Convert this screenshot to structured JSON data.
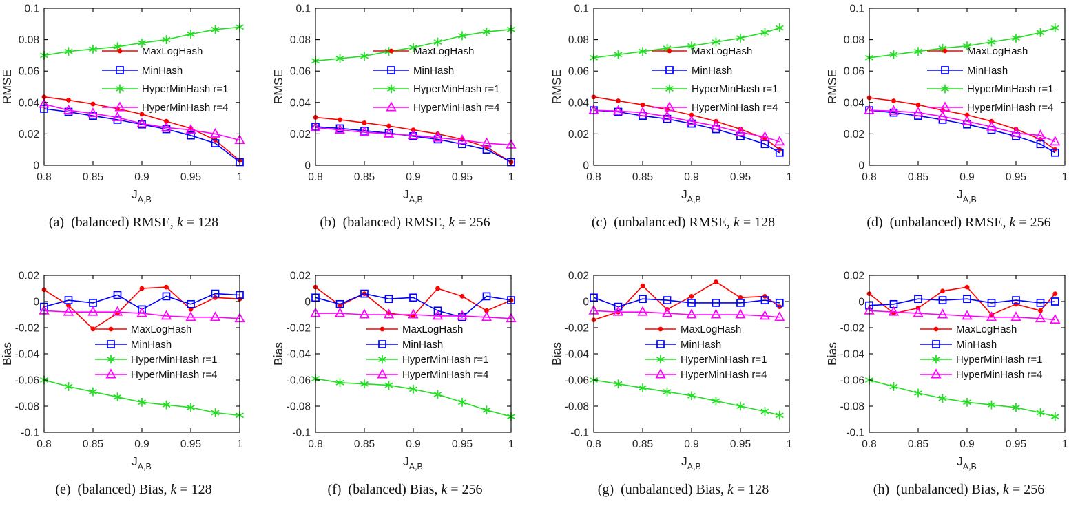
{
  "figure": {
    "methods": [
      "MaxLogHash",
      "MinHash",
      "HyperMinHash r=1",
      "HyperMinHash r=4"
    ],
    "colors": {
      "maxloghash": "#ff0000",
      "minhash": "#0000ff",
      "hyperminhash_r1": "#22dd22",
      "hyperminhash_r4": "#ff00ff",
      "axis": "#000000",
      "text": "#262626"
    }
  },
  "chart_data": [
    {
      "id": "a",
      "type": "line",
      "xlabel_main": "J",
      "xlabel_sub": "A,B",
      "ylabel": "RMSE",
      "xlim": [
        0.8,
        1.0
      ],
      "ylim": [
        0,
        0.1
      ],
      "xticks": [
        0.8,
        0.85,
        0.9,
        0.95,
        1
      ],
      "xtick_labels": [
        "0.8",
        "0.85",
        "0.9",
        "0.95",
        "1"
      ],
      "yticks": [
        0,
        0.02,
        0.04,
        0.06,
        0.08,
        0.1
      ],
      "ytick_labels": [
        "0",
        "0.02",
        "0.04",
        "0.06",
        "0.08",
        "0.1"
      ],
      "legend_position": "mid-right",
      "grid": false,
      "x": [
        0.8,
        0.825,
        0.85,
        0.875,
        0.9,
        0.925,
        0.95,
        0.975,
        1.0
      ],
      "series": [
        {
          "name": "MaxLogHash",
          "color": "#ff0000",
          "marker": "circle-filled",
          "values": [
            0.0435,
            0.0415,
            0.039,
            0.036,
            0.0325,
            0.028,
            0.0235,
            0.016,
            0.003
          ]
        },
        {
          "name": "MinHash",
          "color": "#0000ff",
          "marker": "square-open",
          "values": [
            0.036,
            0.034,
            0.0315,
            0.029,
            0.026,
            0.023,
            0.019,
            0.014,
            0.002
          ]
        },
        {
          "name": "HyperMinHash r=1",
          "color": "#22dd22",
          "marker": "asterisk",
          "values": [
            0.07,
            0.0725,
            0.074,
            0.0755,
            0.078,
            0.08,
            0.0835,
            0.0865,
            0.088
          ]
        },
        {
          "name": "HyperMinHash r=4",
          "color": "#ff00ff",
          "marker": "triangle-open",
          "values": [
            0.039,
            0.035,
            0.033,
            0.0305,
            0.0265,
            0.024,
            0.0225,
            0.02,
            0.016
          ]
        }
      ],
      "caption": {
        "before_k": "(a)  (balanced) RMSE, ",
        "k": "k",
        "after_k": " = 128"
      }
    },
    {
      "id": "b",
      "type": "line",
      "xlabel_main": "J",
      "xlabel_sub": "A,B",
      "ylabel": "RMSE",
      "xlim": [
        0.8,
        1.0
      ],
      "ylim": [
        0,
        0.1
      ],
      "xticks": [
        0.8,
        0.85,
        0.9,
        0.95,
        1
      ],
      "xtick_labels": [
        "0.8",
        "0.85",
        "0.9",
        "0.95",
        "1"
      ],
      "yticks": [
        0,
        0.02,
        0.04,
        0.06,
        0.08,
        0.1
      ],
      "ytick_labels": [
        "0",
        "0.02",
        "0.04",
        "0.06",
        "0.08",
        "0.1"
      ],
      "legend_position": "mid-right",
      "grid": false,
      "x": [
        0.8,
        0.825,
        0.85,
        0.875,
        0.9,
        0.925,
        0.95,
        0.975,
        1.0
      ],
      "series": [
        {
          "name": "MaxLogHash",
          "color": "#ff0000",
          "marker": "circle-filled",
          "values": [
            0.0305,
            0.029,
            0.027,
            0.025,
            0.0225,
            0.02,
            0.0165,
            0.0115,
            0.002
          ]
        },
        {
          "name": "MinHash",
          "color": "#0000ff",
          "marker": "square-open",
          "values": [
            0.0245,
            0.0235,
            0.022,
            0.0205,
            0.0185,
            0.0165,
            0.0135,
            0.01,
            0.002
          ]
        },
        {
          "name": "HyperMinHash r=1",
          "color": "#22dd22",
          "marker": "asterisk",
          "values": [
            0.0665,
            0.068,
            0.0695,
            0.0725,
            0.075,
            0.0785,
            0.0825,
            0.085,
            0.0865
          ]
        },
        {
          "name": "HyperMinHash r=4",
          "color": "#ff00ff",
          "marker": "triangle-open",
          "values": [
            0.024,
            0.0225,
            0.021,
            0.02,
            0.019,
            0.0175,
            0.016,
            0.014,
            0.013
          ]
        }
      ],
      "caption": {
        "before_k": "(b)  (balanced) RMSE, ",
        "k": "k",
        "after_k": " = 256"
      }
    },
    {
      "id": "c",
      "type": "line",
      "xlabel_main": "J",
      "xlabel_sub": "A,B",
      "ylabel": "RMSE",
      "xlim": [
        0.8,
        1.0
      ],
      "ylim": [
        0,
        0.1
      ],
      "xticks": [
        0.8,
        0.85,
        0.9,
        0.95,
        1
      ],
      "xtick_labels": [
        "0.8",
        "0.85",
        "0.9",
        "0.95",
        "1"
      ],
      "yticks": [
        0,
        0.02,
        0.04,
        0.06,
        0.08,
        0.1
      ],
      "ytick_labels": [
        "0",
        "0.02",
        "0.04",
        "0.06",
        "0.08",
        "0.1"
      ],
      "legend_position": "mid-right",
      "grid": false,
      "x": [
        0.8,
        0.825,
        0.85,
        0.875,
        0.9,
        0.925,
        0.95,
        0.975,
        0.99
      ],
      "series": [
        {
          "name": "MaxLogHash",
          "color": "#ff0000",
          "marker": "circle-filled",
          "values": [
            0.0435,
            0.041,
            0.0385,
            0.0355,
            0.032,
            0.028,
            0.023,
            0.017,
            0.01
          ]
        },
        {
          "name": "MinHash",
          "color": "#0000ff",
          "marker": "square-open",
          "values": [
            0.035,
            0.034,
            0.0315,
            0.0295,
            0.0265,
            0.023,
            0.0185,
            0.0135,
            0.008
          ]
        },
        {
          "name": "HyperMinHash r=1",
          "color": "#22dd22",
          "marker": "asterisk",
          "values": [
            0.0685,
            0.0705,
            0.0725,
            0.0745,
            0.076,
            0.0785,
            0.081,
            0.0845,
            0.0875
          ]
        },
        {
          "name": "HyperMinHash r=4",
          "color": "#ff00ff",
          "marker": "triangle-open",
          "values": [
            0.035,
            0.0345,
            0.0335,
            0.031,
            0.028,
            0.025,
            0.021,
            0.018,
            0.015
          ]
        }
      ],
      "caption": {
        "before_k": "(c)  (unbalanced) RMSE, ",
        "k": "k",
        "after_k": " = 128"
      }
    },
    {
      "id": "d",
      "type": "line",
      "xlabel_main": "J",
      "xlabel_sub": "A,B",
      "ylabel": "RMSE",
      "xlim": [
        0.8,
        1.0
      ],
      "ylim": [
        0,
        0.1
      ],
      "xticks": [
        0.8,
        0.85,
        0.9,
        0.95,
        1
      ],
      "xtick_labels": [
        "0.8",
        "0.85",
        "0.9",
        "0.95",
        "1"
      ],
      "yticks": [
        0,
        0.02,
        0.04,
        0.06,
        0.08,
        0.1
      ],
      "ytick_labels": [
        "0",
        "0.02",
        "0.04",
        "0.06",
        "0.08",
        "0.1"
      ],
      "legend_position": "mid-right",
      "grid": false,
      "x": [
        0.8,
        0.825,
        0.85,
        0.875,
        0.9,
        0.925,
        0.95,
        0.975,
        0.99
      ],
      "series": [
        {
          "name": "MaxLogHash",
          "color": "#ff0000",
          "marker": "circle-filled",
          "values": [
            0.043,
            0.041,
            0.0385,
            0.035,
            0.032,
            0.028,
            0.023,
            0.0165,
            0.01
          ]
        },
        {
          "name": "MinHash",
          "color": "#0000ff",
          "marker": "square-open",
          "values": [
            0.035,
            0.0335,
            0.0315,
            0.029,
            0.026,
            0.0225,
            0.0185,
            0.0135,
            0.008
          ]
        },
        {
          "name": "HyperMinHash r=1",
          "color": "#22dd22",
          "marker": "asterisk",
          "values": [
            0.0685,
            0.0705,
            0.0725,
            0.0745,
            0.076,
            0.0785,
            0.081,
            0.0845,
            0.0875
          ]
        },
        {
          "name": "HyperMinHash r=4",
          "color": "#ff00ff",
          "marker": "triangle-open",
          "values": [
            0.035,
            0.0345,
            0.0335,
            0.031,
            0.028,
            0.0245,
            0.0205,
            0.019,
            0.015
          ]
        }
      ],
      "caption": {
        "before_k": "(d)  (unbalanced) RMSE, ",
        "k": "k",
        "after_k": " = 256"
      }
    },
    {
      "id": "e",
      "type": "line",
      "xlabel_main": "J",
      "xlabel_sub": "A,B",
      "ylabel": "Bias",
      "xlim": [
        0.8,
        1.0
      ],
      "ylim": [
        -0.1,
        0.02
      ],
      "xticks": [
        0.8,
        0.85,
        0.9,
        0.95,
        1
      ],
      "xtick_labels": [
        "0.8",
        "0.85",
        "0.9",
        "0.95",
        "1"
      ],
      "yticks": [
        -0.1,
        -0.08,
        -0.06,
        -0.04,
        -0.02,
        0,
        0.02
      ],
      "ytick_labels": [
        "-0.1",
        "-0.08",
        "-0.06",
        "-0.04",
        "-0.02",
        "0",
        "0.02"
      ],
      "legend_position": "mid-left",
      "grid": false,
      "x": [
        0.8,
        0.825,
        0.85,
        0.875,
        0.9,
        0.925,
        0.95,
        0.975,
        1.0
      ],
      "series": [
        {
          "name": "MaxLogHash",
          "color": "#ff0000",
          "marker": "circle-filled",
          "values": [
            0.009,
            -0.003,
            -0.021,
            -0.009,
            0.01,
            0.011,
            -0.006,
            0.003,
            0.002
          ]
        },
        {
          "name": "MinHash",
          "color": "#0000ff",
          "marker": "square-open",
          "values": [
            -0.004,
            0.001,
            -0.001,
            0.005,
            -0.006,
            0.004,
            -0.002,
            0.006,
            0.005
          ]
        },
        {
          "name": "HyperMinHash r=1",
          "color": "#22dd22",
          "marker": "asterisk",
          "values": [
            -0.06,
            -0.065,
            -0.069,
            -0.073,
            -0.077,
            -0.079,
            -0.081,
            -0.085,
            -0.087
          ]
        },
        {
          "name": "HyperMinHash r=4",
          "color": "#ff00ff",
          "marker": "triangle-open",
          "values": [
            -0.007,
            -0.008,
            -0.008,
            -0.008,
            -0.009,
            -0.011,
            -0.012,
            -0.012,
            -0.013
          ]
        }
      ],
      "caption": {
        "before_k": "(e)  (balanced) Bias, ",
        "k": "k",
        "after_k": " = 128"
      }
    },
    {
      "id": "f",
      "type": "line",
      "xlabel_main": "J",
      "xlabel_sub": "A,B",
      "ylabel": "Bias",
      "xlim": [
        0.8,
        1.0
      ],
      "ylim": [
        -0.1,
        0.02
      ],
      "xticks": [
        0.8,
        0.85,
        0.9,
        0.95,
        1
      ],
      "xtick_labels": [
        "0.8",
        "0.85",
        "0.9",
        "0.95",
        "1"
      ],
      "yticks": [
        -0.1,
        -0.08,
        -0.06,
        -0.04,
        -0.02,
        0,
        0.02
      ],
      "ytick_labels": [
        "-0.1",
        "-0.08",
        "-0.06",
        "-0.04",
        "-0.02",
        "0",
        "0.02"
      ],
      "legend_position": "mid-left",
      "grid": false,
      "x": [
        0.8,
        0.825,
        0.85,
        0.875,
        0.9,
        0.925,
        0.95,
        0.975,
        1.0
      ],
      "series": [
        {
          "name": "MaxLogHash",
          "color": "#ff0000",
          "marker": "circle-filled",
          "values": [
            0.011,
            -0.003,
            0.006,
            -0.009,
            -0.011,
            0.01,
            0.004,
            -0.007,
            0.001
          ]
        },
        {
          "name": "MinHash",
          "color": "#0000ff",
          "marker": "square-open",
          "values": [
            0.003,
            -0.002,
            0.006,
            0.002,
            0.003,
            -0.007,
            -0.012,
            0.004,
            0.001
          ]
        },
        {
          "name": "HyperMinHash r=1",
          "color": "#22dd22",
          "marker": "asterisk",
          "values": [
            -0.059,
            -0.062,
            -0.063,
            -0.064,
            -0.067,
            -0.071,
            -0.077,
            -0.083,
            -0.088
          ]
        },
        {
          "name": "HyperMinHash r=4",
          "color": "#ff00ff",
          "marker": "triangle-open",
          "values": [
            -0.009,
            -0.009,
            -0.01,
            -0.01,
            -0.01,
            -0.011,
            -0.011,
            -0.012,
            -0.013
          ]
        }
      ],
      "caption": {
        "before_k": "(f)  (balanced) Bias, ",
        "k": "k",
        "after_k": " = 256"
      }
    },
    {
      "id": "g",
      "type": "line",
      "xlabel_main": "J",
      "xlabel_sub": "A,B",
      "ylabel": "Bias",
      "xlim": [
        0.8,
        1.0
      ],
      "ylim": [
        -0.1,
        0.02
      ],
      "xticks": [
        0.8,
        0.85,
        0.9,
        0.95,
        1
      ],
      "xtick_labels": [
        "0.8",
        "0.85",
        "0.9",
        "0.95",
        "1"
      ],
      "yticks": [
        -0.1,
        -0.08,
        -0.06,
        -0.04,
        -0.02,
        0,
        0.02
      ],
      "ytick_labels": [
        "-0.1",
        "-0.08",
        "-0.06",
        "-0.04",
        "-0.02",
        "0",
        "0.02"
      ],
      "legend_position": "mid-left",
      "grid": false,
      "x": [
        0.8,
        0.825,
        0.85,
        0.875,
        0.9,
        0.925,
        0.95,
        0.975,
        0.99
      ],
      "series": [
        {
          "name": "MaxLogHash",
          "color": "#ff0000",
          "marker": "circle-filled",
          "values": [
            -0.014,
            -0.008,
            0.012,
            -0.006,
            0.004,
            0.015,
            0.003,
            0.004,
            -0.004
          ]
        },
        {
          "name": "MinHash",
          "color": "#0000ff",
          "marker": "square-open",
          "values": [
            0.003,
            -0.004,
            0.002,
            0.001,
            -0.001,
            -0.001,
            -0.001,
            0.001,
            -0.001
          ]
        },
        {
          "name": "HyperMinHash r=1",
          "color": "#22dd22",
          "marker": "asterisk",
          "values": [
            -0.06,
            -0.063,
            -0.066,
            -0.069,
            -0.072,
            -0.076,
            -0.08,
            -0.084,
            -0.087
          ]
        },
        {
          "name": "HyperMinHash r=4",
          "color": "#ff00ff",
          "marker": "triangle-open",
          "values": [
            -0.007,
            -0.008,
            -0.008,
            -0.009,
            -0.01,
            -0.01,
            -0.01,
            -0.011,
            -0.012
          ]
        }
      ],
      "caption": {
        "before_k": "(g)  (unbalanced) Bias, ",
        "k": "k",
        "after_k": " = 128"
      }
    },
    {
      "id": "h",
      "type": "line",
      "xlabel_main": "J",
      "xlabel_sub": "A,B",
      "ylabel": "Bias",
      "xlim": [
        0.8,
        1.0
      ],
      "ylim": [
        -0.1,
        0.02
      ],
      "xticks": [
        0.8,
        0.85,
        0.9,
        0.95,
        1
      ],
      "xtick_labels": [
        "0.8",
        "0.85",
        "0.9",
        "0.95",
        "1"
      ],
      "yticks": [
        -0.1,
        -0.08,
        -0.06,
        -0.04,
        -0.02,
        0,
        0.02
      ],
      "ytick_labels": [
        "-0.1",
        "-0.08",
        "-0.06",
        "-0.04",
        "-0.02",
        "0",
        "0.02"
      ],
      "legend_position": "mid-left",
      "grid": false,
      "x": [
        0.8,
        0.825,
        0.85,
        0.875,
        0.9,
        0.925,
        0.95,
        0.975,
        0.99
      ],
      "series": [
        {
          "name": "MaxLogHash",
          "color": "#ff0000",
          "marker": "circle-filled",
          "values": [
            0.006,
            -0.009,
            -0.005,
            0.008,
            0.011,
            -0.01,
            -0.002,
            -0.007,
            0.006
          ]
        },
        {
          "name": "MinHash",
          "color": "#0000ff",
          "marker": "square-open",
          "values": [
            -0.003,
            -0.002,
            0.002,
            0.001,
            0.002,
            -0.001,
            0.001,
            -0.001,
            0.0
          ]
        },
        {
          "name": "HyperMinHash r=1",
          "color": "#22dd22",
          "marker": "asterisk",
          "values": [
            -0.06,
            -0.065,
            -0.07,
            -0.074,
            -0.077,
            -0.079,
            -0.081,
            -0.085,
            -0.088
          ]
        },
        {
          "name": "HyperMinHash r=4",
          "color": "#ff00ff",
          "marker": "triangle-open",
          "values": [
            -0.007,
            -0.008,
            -0.009,
            -0.01,
            -0.011,
            -0.012,
            -0.012,
            -0.013,
            -0.014
          ]
        }
      ],
      "caption": {
        "before_k": "(h)  (unbalanced) Bias, ",
        "k": "k",
        "after_k": " = 256"
      }
    }
  ]
}
